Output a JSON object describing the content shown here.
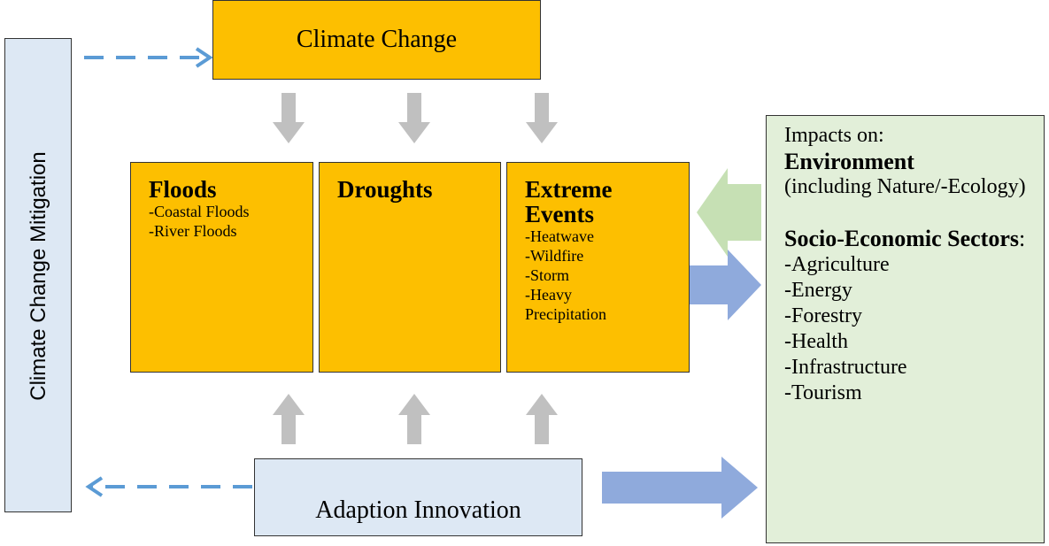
{
  "mitigation": {
    "label": "Climate Change Mitigation"
  },
  "climate_change": {
    "label": "Climate Change"
  },
  "hazards": [
    {
      "title": "Floods",
      "items": [
        "-Coastal Floods",
        "-River Floods"
      ]
    },
    {
      "title": "Droughts",
      "items": []
    },
    {
      "title": "Extreme Events",
      "items": [
        "-Heatwave",
        "-Wildfire",
        "-Storm",
        "-Heavy Precipitation"
      ]
    }
  ],
  "adaption": {
    "label": "Adaption Innovation"
  },
  "impacts": {
    "heading": "Impacts on:",
    "environment": "Environment",
    "environment_note": "(including Nature/-Ecology)",
    "sectors_title": "Socio-Economic Sectors",
    "sectors_suffix": ":",
    "sectors": [
      "-Agriculture",
      "-Energy",
      "-Forestry",
      "-Health",
      "-Infrastructure",
      "-Tourism"
    ]
  }
}
